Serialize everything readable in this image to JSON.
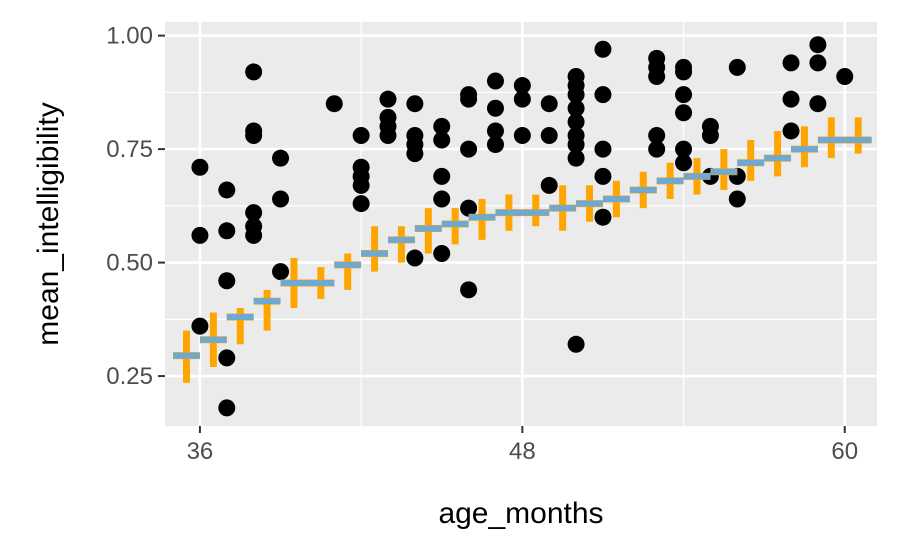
{
  "chart_data": {
    "type": "scatter",
    "xlabel": "age_months",
    "ylabel": "mean_intelligibility",
    "xlim": [
      34.7,
      61.2
    ],
    "ylim": [
      0.14,
      1.03
    ],
    "x_ticks": [
      36,
      48,
      60
    ],
    "x_tick_labels": [
      "36",
      "48",
      "60"
    ],
    "y_ticks": [
      0.25,
      0.5,
      0.75,
      1.0
    ],
    "y_tick_labels": [
      "0.25",
      "0.50",
      "0.75",
      "1.00"
    ],
    "grid": true,
    "colors": {
      "panel": "#ebebeb",
      "grid": "#ffffff",
      "points": "#000000",
      "interval": "#ffa500",
      "fit": "#6fa8d0"
    },
    "series": [
      {
        "type": "scatter",
        "points": [
          [
            36,
            0.71
          ],
          [
            36,
            0.56
          ],
          [
            36,
            0.36
          ],
          [
            37,
            0.66
          ],
          [
            37,
            0.57
          ],
          [
            37,
            0.46
          ],
          [
            37,
            0.29
          ],
          [
            37,
            0.18
          ],
          [
            38,
            0.92
          ],
          [
            38,
            0.79
          ],
          [
            38,
            0.78
          ],
          [
            38,
            0.61
          ],
          [
            38,
            0.58
          ],
          [
            38,
            0.56
          ],
          [
            39,
            0.73
          ],
          [
            39,
            0.64
          ],
          [
            39,
            0.48
          ],
          [
            41,
            0.85
          ],
          [
            42,
            0.78
          ],
          [
            42,
            0.71
          ],
          [
            42,
            0.69
          ],
          [
            42,
            0.67
          ],
          [
            42,
            0.63
          ],
          [
            43,
            0.86
          ],
          [
            43,
            0.82
          ],
          [
            43,
            0.8
          ],
          [
            43,
            0.78
          ],
          [
            44,
            0.85
          ],
          [
            44,
            0.78
          ],
          [
            44,
            0.76
          ],
          [
            44,
            0.74
          ],
          [
            44,
            0.51
          ],
          [
            45,
            0.8
          ],
          [
            45,
            0.77
          ],
          [
            45,
            0.69
          ],
          [
            45,
            0.64
          ],
          [
            45,
            0.52
          ],
          [
            46,
            0.87
          ],
          [
            46,
            0.86
          ],
          [
            46,
            0.75
          ],
          [
            46,
            0.62
          ],
          [
            46,
            0.44
          ],
          [
            47,
            0.9
          ],
          [
            47,
            0.84
          ],
          [
            47,
            0.79
          ],
          [
            47,
            0.76
          ],
          [
            48,
            0.89
          ],
          [
            48,
            0.86
          ],
          [
            48,
            0.78
          ],
          [
            49,
            0.85
          ],
          [
            49,
            0.78
          ],
          [
            49,
            0.67
          ],
          [
            50,
            0.91
          ],
          [
            50,
            0.89
          ],
          [
            50,
            0.87
          ],
          [
            50,
            0.84
          ],
          [
            50,
            0.81
          ],
          [
            50,
            0.78
          ],
          [
            50,
            0.76
          ],
          [
            50,
            0.73
          ],
          [
            50,
            0.32
          ],
          [
            51,
            0.97
          ],
          [
            51,
            0.87
          ],
          [
            51,
            0.75
          ],
          [
            51,
            0.69
          ],
          [
            51,
            0.6
          ],
          [
            53,
            0.95
          ],
          [
            53,
            0.93
          ],
          [
            53,
            0.91
          ],
          [
            53,
            0.78
          ],
          [
            53,
            0.75
          ],
          [
            54,
            0.93
          ],
          [
            54,
            0.92
          ],
          [
            54,
            0.87
          ],
          [
            54,
            0.83
          ],
          [
            54,
            0.75
          ],
          [
            54,
            0.72
          ],
          [
            55,
            0.8
          ],
          [
            55,
            0.78
          ],
          [
            55,
            0.69
          ],
          [
            56,
            0.93
          ],
          [
            56,
            0.69
          ],
          [
            56,
            0.64
          ],
          [
            58,
            0.94
          ],
          [
            58,
            0.86
          ],
          [
            58,
            0.79
          ],
          [
            59,
            0.98
          ],
          [
            59,
            0.94
          ],
          [
            59,
            0.85
          ],
          [
            60,
            0.91
          ]
        ]
      },
      {
        "type": "interval",
        "points": [
          [
            35.5,
            0.295,
            0.235,
            0.35
          ],
          [
            36.5,
            0.33,
            0.27,
            0.39
          ],
          [
            37.5,
            0.38,
            0.32,
            0.4
          ],
          [
            38.5,
            0.415,
            0.35,
            0.44
          ],
          [
            39.5,
            0.455,
            0.4,
            0.51
          ],
          [
            40.5,
            0.455,
            0.42,
            0.49
          ],
          [
            41.5,
            0.495,
            0.44,
            0.52
          ],
          [
            42.5,
            0.52,
            0.48,
            0.58
          ],
          [
            43.5,
            0.55,
            0.5,
            0.58
          ],
          [
            44.5,
            0.575,
            0.52,
            0.62
          ],
          [
            45.5,
            0.585,
            0.54,
            0.62
          ],
          [
            46.5,
            0.6,
            0.55,
            0.64
          ],
          [
            47.5,
            0.61,
            0.57,
            0.65
          ],
          [
            48.5,
            0.61,
            0.58,
            0.65
          ],
          [
            49.5,
            0.62,
            0.57,
            0.67
          ],
          [
            50.5,
            0.63,
            0.59,
            0.67
          ],
          [
            51.5,
            0.64,
            0.6,
            0.68
          ],
          [
            52.5,
            0.66,
            0.62,
            0.7
          ],
          [
            53.5,
            0.68,
            0.64,
            0.72
          ],
          [
            54.5,
            0.69,
            0.65,
            0.73
          ],
          [
            55.5,
            0.7,
            0.66,
            0.75
          ],
          [
            56.5,
            0.72,
            0.68,
            0.77
          ],
          [
            57.5,
            0.73,
            0.69,
            0.79
          ],
          [
            58.5,
            0.75,
            0.71,
            0.8
          ],
          [
            59.5,
            0.77,
            0.73,
            0.82
          ],
          [
            60.5,
            0.77,
            0.74,
            0.82
          ]
        ]
      }
    ]
  }
}
